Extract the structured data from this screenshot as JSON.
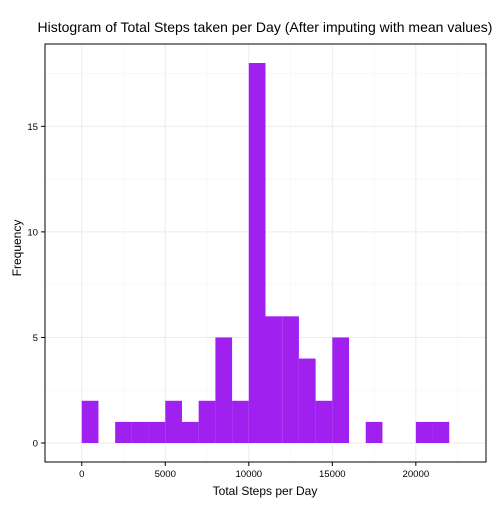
{
  "chart_data": {
    "type": "bar",
    "title": "Histogram of Total Steps taken per Day (After imputing with mean values)",
    "xlabel": "Total Steps per Day",
    "ylabel": "Frequency",
    "bin_width": 1000,
    "bins": [
      {
        "x0": 0,
        "x1": 1000,
        "count": 2
      },
      {
        "x0": 1000,
        "x1": 2000,
        "count": 0
      },
      {
        "x0": 2000,
        "x1": 3000,
        "count": 1
      },
      {
        "x0": 3000,
        "x1": 4000,
        "count": 1
      },
      {
        "x0": 4000,
        "x1": 5000,
        "count": 1
      },
      {
        "x0": 5000,
        "x1": 6000,
        "count": 2
      },
      {
        "x0": 6000,
        "x1": 7000,
        "count": 1
      },
      {
        "x0": 7000,
        "x1": 8000,
        "count": 2
      },
      {
        "x0": 8000,
        "x1": 9000,
        "count": 5
      },
      {
        "x0": 9000,
        "x1": 10000,
        "count": 2
      },
      {
        "x0": 10000,
        "x1": 11000,
        "count": 18
      },
      {
        "x0": 11000,
        "x1": 12000,
        "count": 6
      },
      {
        "x0": 12000,
        "x1": 13000,
        "count": 6
      },
      {
        "x0": 13000,
        "x1": 14000,
        "count": 4
      },
      {
        "x0": 14000,
        "x1": 15000,
        "count": 2
      },
      {
        "x0": 15000,
        "x1": 16000,
        "count": 5
      },
      {
        "x0": 16000,
        "x1": 17000,
        "count": 0
      },
      {
        "x0": 17000,
        "x1": 18000,
        "count": 1
      },
      {
        "x0": 18000,
        "x1": 19000,
        "count": 0
      },
      {
        "x0": 19000,
        "x1": 20000,
        "count": 0
      },
      {
        "x0": 20000,
        "x1": 21000,
        "count": 1
      },
      {
        "x0": 21000,
        "x1": 22000,
        "count": 1
      }
    ],
    "xlim": [
      -2200,
      24200
    ],
    "ylim": [
      -0.9,
      18.9
    ],
    "xticks": [
      0,
      5000,
      10000,
      15000,
      20000
    ],
    "xtick_labels": [
      "0",
      "5000",
      "10000",
      "15000",
      "20000"
    ],
    "yticks": [
      0,
      5,
      10,
      15
    ],
    "ytick_labels": [
      "0",
      "5",
      "10",
      "15"
    ],
    "bar_color": "#A020F0",
    "grid": true,
    "grid_color": "#EBEBEB",
    "axis_color": "#000000",
    "legend": "none"
  }
}
